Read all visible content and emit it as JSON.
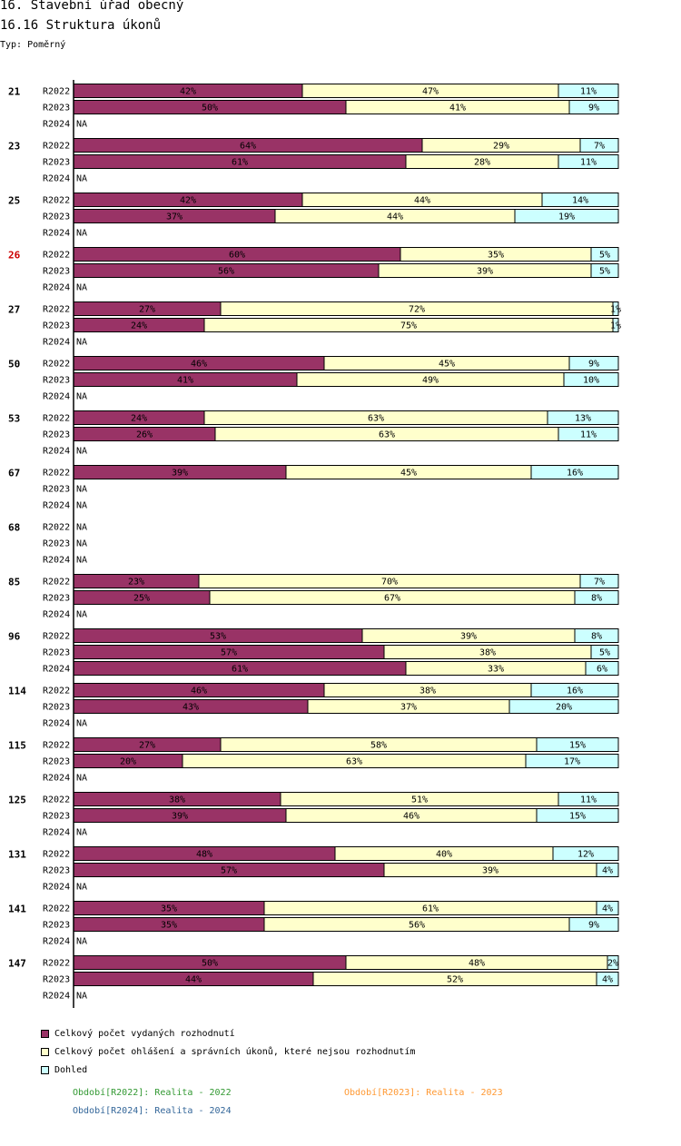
{
  "header": {
    "title": "16. Stavební úřad obecný",
    "subtitle": "16.16 Struktura úkonů",
    "type_label": "Typ: Poměrný"
  },
  "colors": {
    "s1": "#993366",
    "s2": "#ffffcc",
    "s3": "#ccffff",
    "highlight_group": "#cc0000",
    "note_2022": "#339933",
    "note_2023": "#ff9933",
    "note_2024": "#336699"
  },
  "chart_data": {
    "type": "bar",
    "orientation": "horizontal",
    "stacked": "percent",
    "title": "16.16 Struktura úkonů",
    "xlim": [
      0,
      100
    ],
    "na_label": "NA",
    "series": [
      {
        "name": "Celkový počet vydaných rozhodnutí",
        "color": "#993366"
      },
      {
        "name": "Celkový počet ohlášení a správních úkonů, které nejsou rozhodnutím",
        "color": "#ffffcc"
      },
      {
        "name": "Dohled",
        "color": "#ccffff"
      }
    ],
    "groups": [
      {
        "label": "21",
        "highlight": false,
        "rows": [
          {
            "period": "R2022",
            "values": [
              42,
              47,
              11
            ]
          },
          {
            "period": "R2023",
            "values": [
              50,
              41,
              9
            ]
          },
          {
            "period": "R2024",
            "values": null
          }
        ]
      },
      {
        "label": "23",
        "highlight": false,
        "rows": [
          {
            "period": "R2022",
            "values": [
              64,
              29,
              7
            ]
          },
          {
            "period": "R2023",
            "values": [
              61,
              28,
              11
            ]
          },
          {
            "period": "R2024",
            "values": null
          }
        ]
      },
      {
        "label": "25",
        "highlight": false,
        "rows": [
          {
            "period": "R2022",
            "values": [
              42,
              44,
              14
            ]
          },
          {
            "period": "R2023",
            "values": [
              37,
              44,
              19
            ]
          },
          {
            "period": "R2024",
            "values": null
          }
        ]
      },
      {
        "label": "26",
        "highlight": true,
        "rows": [
          {
            "period": "R2022",
            "values": [
              60,
              35,
              5
            ]
          },
          {
            "period": "R2023",
            "values": [
              56,
              39,
              5
            ]
          },
          {
            "period": "R2024",
            "values": null
          }
        ]
      },
      {
        "label": "27",
        "highlight": false,
        "rows": [
          {
            "period": "R2022",
            "values": [
              27,
              72,
              1
            ]
          },
          {
            "period": "R2023",
            "values": [
              24,
              75,
              1
            ]
          },
          {
            "period": "R2024",
            "values": null
          }
        ]
      },
      {
        "label": "50",
        "highlight": false,
        "rows": [
          {
            "period": "R2022",
            "values": [
              46,
              45,
              9
            ]
          },
          {
            "period": "R2023",
            "values": [
              41,
              49,
              10
            ]
          },
          {
            "period": "R2024",
            "values": null
          }
        ]
      },
      {
        "label": "53",
        "highlight": false,
        "rows": [
          {
            "period": "R2022",
            "values": [
              24,
              63,
              13
            ]
          },
          {
            "period": "R2023",
            "values": [
              26,
              63,
              11
            ]
          },
          {
            "period": "R2024",
            "values": null
          }
        ]
      },
      {
        "label": "67",
        "highlight": false,
        "rows": [
          {
            "period": "R2022",
            "values": [
              39,
              45,
              16
            ]
          },
          {
            "period": "R2023",
            "values": null
          },
          {
            "period": "R2024",
            "values": null
          }
        ]
      },
      {
        "label": "68",
        "highlight": false,
        "rows": [
          {
            "period": "R2022",
            "values": null
          },
          {
            "period": "R2023",
            "values": null
          },
          {
            "period": "R2024",
            "values": null
          }
        ]
      },
      {
        "label": "85",
        "highlight": false,
        "rows": [
          {
            "period": "R2022",
            "values": [
              23,
              70,
              7
            ]
          },
          {
            "period": "R2023",
            "values": [
              25,
              67,
              8
            ]
          },
          {
            "period": "R2024",
            "values": null
          }
        ]
      },
      {
        "label": "96",
        "highlight": false,
        "rows": [
          {
            "period": "R2022",
            "values": [
              53,
              39,
              8
            ]
          },
          {
            "period": "R2023",
            "values": [
              57,
              38,
              5
            ]
          },
          {
            "period": "R2024",
            "values": [
              61,
              33,
              6
            ]
          }
        ]
      },
      {
        "label": "114",
        "highlight": false,
        "rows": [
          {
            "period": "R2022",
            "values": [
              46,
              38,
              16
            ]
          },
          {
            "period": "R2023",
            "values": [
              43,
              37,
              20
            ]
          },
          {
            "period": "R2024",
            "values": null
          }
        ]
      },
      {
        "label": "115",
        "highlight": false,
        "rows": [
          {
            "period": "R2022",
            "values": [
              27,
              58,
              15
            ]
          },
          {
            "period": "R2023",
            "values": [
              20,
              63,
              17
            ]
          },
          {
            "period": "R2024",
            "values": null
          }
        ]
      },
      {
        "label": "125",
        "highlight": false,
        "rows": [
          {
            "period": "R2022",
            "values": [
              38,
              51,
              11
            ]
          },
          {
            "period": "R2023",
            "values": [
              39,
              46,
              15
            ]
          },
          {
            "period": "R2024",
            "values": null
          }
        ]
      },
      {
        "label": "131",
        "highlight": false,
        "rows": [
          {
            "period": "R2022",
            "values": [
              48,
              40,
              12
            ]
          },
          {
            "period": "R2023",
            "values": [
              57,
              39,
              4
            ]
          },
          {
            "period": "R2024",
            "values": null
          }
        ]
      },
      {
        "label": "141",
        "highlight": false,
        "rows": [
          {
            "period": "R2022",
            "values": [
              35,
              61,
              4
            ]
          },
          {
            "period": "R2023",
            "values": [
              35,
              56,
              9
            ]
          },
          {
            "period": "R2024",
            "values": null
          }
        ]
      },
      {
        "label": "147",
        "highlight": false,
        "rows": [
          {
            "period": "R2022",
            "values": [
              50,
              48,
              2
            ]
          },
          {
            "period": "R2023",
            "values": [
              44,
              52,
              4
            ]
          },
          {
            "period": "R2024",
            "values": null
          }
        ]
      }
    ]
  },
  "legend": {
    "items": [
      {
        "label": "Celkový počet vydaných rozhodnutí"
      },
      {
        "label": "Celkový počet ohlášení a správních úkonů, které nejsou rozhodnutím"
      },
      {
        "label": "Dohled"
      }
    ]
  },
  "notes": {
    "r2022": "Období[R2022]: Realita - 2022",
    "r2023": "Období[R2023]: Realita - 2023",
    "r2024": "Období[R2024]: Realita - 2024"
  }
}
